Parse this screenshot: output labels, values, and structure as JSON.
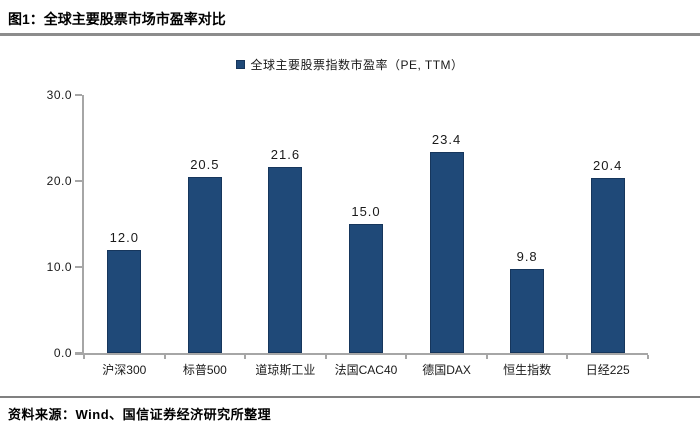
{
  "figure": {
    "title": "图1：全球主要股票市场市盈率对比",
    "source": "资料来源：Wind、国信证券经济研究所整理"
  },
  "chart_data": {
    "type": "bar",
    "title": "图1：全球主要股票市场市盈率对比",
    "legend": [
      "全球主要股票指数市盈率（PE, TTM）"
    ],
    "legend_position": "top",
    "categories": [
      "沪深300",
      "标普500",
      "道琼斯工业",
      "法国CAC40",
      "德国DAX",
      "恒生指数",
      "日经225"
    ],
    "values": [
      12.0,
      20.5,
      21.6,
      15.0,
      23.4,
      9.8,
      20.4
    ],
    "value_labels": [
      "12.0",
      "20.5",
      "21.6",
      "15.0",
      "23.4",
      "9.8",
      "20.4"
    ],
    "xlabel": "",
    "ylabel": "",
    "ylim": [
      0,
      30
    ],
    "yticks": [
      0,
      10,
      20,
      30
    ],
    "ytick_labels": [
      "0.0",
      "10.0",
      "20.0",
      "30.0"
    ],
    "grid": false,
    "bar_color": "#1f4978",
    "bar_border_color": "#16365c",
    "axis_color": "#a6a6a6"
  }
}
